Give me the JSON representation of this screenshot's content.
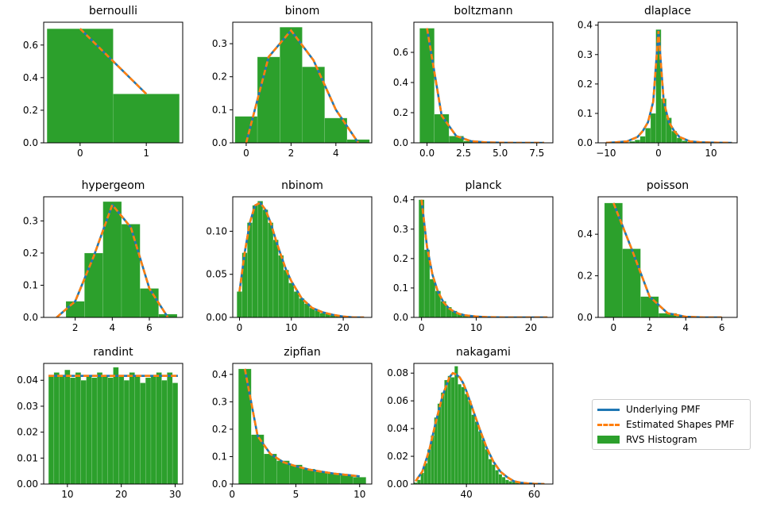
{
  "colors": {
    "pmf": "#1f77b4",
    "estimated": "#ff7f0e",
    "histogram": "#2ca02c",
    "axes": "#000000"
  },
  "legend": {
    "underlying_label": "Underlying PMF",
    "estimated_label": "Estimated Shapes PMF",
    "histogram_label": "RVS Histogram"
  },
  "chart_data": [
    {
      "title": "bernoulli",
      "type": "bar",
      "xlim": [
        -0.55,
        1.55
      ],
      "ylim": [
        0,
        0.74
      ],
      "xticks": [
        0,
        1
      ],
      "xticklabels": [
        "0",
        "1"
      ],
      "yticks": [
        0,
        0.2,
        0.4,
        0.6
      ],
      "yticklabels": [
        "0.0",
        "0.2",
        "0.4",
        "0.6"
      ],
      "hist_edges": [
        -0.5,
        0.5,
        1.5
      ],
      "hist_values": [
        0.7,
        0.3
      ],
      "pmf_x": [
        0,
        1
      ],
      "pmf_y": [
        0.7,
        0.3
      ]
    },
    {
      "title": "binom",
      "type": "bar",
      "xlim": [
        -0.6,
        5.6
      ],
      "ylim": [
        0,
        0.365
      ],
      "xticks": [
        0,
        2,
        4
      ],
      "xticklabels": [
        "0",
        "2",
        "4"
      ],
      "yticks": [
        0,
        0.1,
        0.2,
        0.3
      ],
      "yticklabels": [
        "0.0",
        "0.1",
        "0.2",
        "0.3"
      ],
      "hist_edges": [
        -0.5,
        0.5,
        1.5,
        2.5,
        3.5,
        4.5,
        5.5
      ],
      "hist_values": [
        0.08,
        0.26,
        0.35,
        0.23,
        0.075,
        0.01
      ],
      "pmf_x": [
        0,
        1,
        2,
        3,
        4,
        5
      ],
      "pmf_y": [
        0.0,
        0.26,
        0.34,
        0.25,
        0.1,
        0.0
      ]
    },
    {
      "title": "boltzmann",
      "type": "bar",
      "xlim": [
        -0.9,
        8.6
      ],
      "ylim": [
        0,
        0.8
      ],
      "xticks": [
        0,
        2.5,
        5,
        7.5
      ],
      "xticklabels": [
        "0.0",
        "2.5",
        "5.0",
        "7.5"
      ],
      "yticks": [
        0,
        0.2,
        0.4,
        0.6
      ],
      "yticklabels": [
        "0.0",
        "0.2",
        "0.4",
        "0.6"
      ],
      "hist_edges": [
        -0.5,
        0.5,
        1.5,
        2.5,
        3.5,
        4.5
      ],
      "hist_values": [
        0.76,
        0.19,
        0.045,
        0.012,
        0.003
      ],
      "pmf_x": [
        0,
        1,
        2,
        3,
        4,
        5,
        6,
        7,
        8
      ],
      "pmf_y": [
        0.76,
        0.18,
        0.045,
        0.011,
        0.003,
        0.001,
        0.0,
        0.0,
        0.0
      ]
    },
    {
      "title": "dlaplace",
      "type": "bar",
      "xlim": [
        -11.5,
        15
      ],
      "ylim": [
        0,
        0.41
      ],
      "xticks": [
        -10,
        0,
        10
      ],
      "xticklabels": [
        "−10",
        "0",
        "10"
      ],
      "yticks": [
        0,
        0.1,
        0.2,
        0.3,
        0.4
      ],
      "yticklabels": [
        "0.0",
        "0.1",
        "0.2",
        "0.3",
        "0.4"
      ],
      "hist_edges": [
        -6.5,
        -5.5,
        -4.5,
        -3.5,
        -2.5,
        -1.5,
        -0.5,
        0.5,
        1.5,
        2.5,
        3.5,
        4.5,
        5.5,
        6.5
      ],
      "hist_values": [
        0.002,
        0.005,
        0.01,
        0.022,
        0.05,
        0.1,
        0.385,
        0.15,
        0.085,
        0.04,
        0.017,
        0.007,
        0.003
      ],
      "pmf_x": [
        -10,
        -8,
        -6,
        -4,
        -3,
        -2,
        -1,
        0,
        1,
        2,
        3,
        4,
        6,
        8,
        10,
        14
      ],
      "pmf_y": [
        0.0,
        0.002,
        0.005,
        0.02,
        0.04,
        0.07,
        0.14,
        0.38,
        0.14,
        0.07,
        0.04,
        0.02,
        0.005,
        0.002,
        0.001,
        0.0
      ]
    },
    {
      "title": "hypergeom",
      "type": "bar",
      "xlim": [
        0.3,
        7.8
      ],
      "ylim": [
        0,
        0.375
      ],
      "xticks": [
        2,
        4,
        6
      ],
      "xticklabels": [
        "2",
        "4",
        "6"
      ],
      "yticks": [
        0,
        0.1,
        0.2,
        0.3
      ],
      "yticklabels": [
        "0.0",
        "0.1",
        "0.2",
        "0.3"
      ],
      "hist_edges": [
        1.5,
        2.5,
        3.5,
        4.5,
        5.5,
        6.5,
        7.5
      ],
      "hist_values": [
        0.05,
        0.2,
        0.36,
        0.29,
        0.09,
        0.01
      ],
      "pmf_x": [
        1,
        2,
        3,
        4,
        5,
        6,
        7
      ],
      "pmf_y": [
        0.0,
        0.05,
        0.19,
        0.35,
        0.28,
        0.09,
        0.0
      ]
    },
    {
      "title": "nbinom",
      "type": "bar",
      "xlim": [
        -1.3,
        25.5
      ],
      "ylim": [
        0,
        0.14
      ],
      "xticks": [
        0,
        10,
        20
      ],
      "xticklabels": [
        "0",
        "10",
        "20"
      ],
      "yticks": [
        0,
        0.05,
        0.1
      ],
      "yticklabels": [
        "0.00",
        "0.05",
        "0.10"
      ],
      "hist_edges": [
        -0.5,
        0.5,
        1.5,
        2.5,
        3.5,
        4.5,
        5.5,
        6.5,
        7.5,
        8.5,
        9.5,
        10.5,
        11.5,
        12.5,
        13.5,
        14.5,
        15.5,
        16.5,
        17.5,
        18.5,
        19.5,
        20.5
      ],
      "hist_values": [
        0.03,
        0.075,
        0.11,
        0.13,
        0.135,
        0.125,
        0.11,
        0.09,
        0.072,
        0.055,
        0.04,
        0.03,
        0.022,
        0.016,
        0.011,
        0.008,
        0.005,
        0.004,
        0.003,
        0.002,
        0.001
      ],
      "pmf_x": [
        0,
        1,
        2,
        3,
        4,
        5,
        6,
        7,
        8,
        9,
        10,
        12,
        14,
        16,
        18,
        20,
        22,
        24
      ],
      "pmf_y": [
        0.03,
        0.075,
        0.11,
        0.13,
        0.133,
        0.125,
        0.11,
        0.09,
        0.072,
        0.055,
        0.042,
        0.022,
        0.011,
        0.006,
        0.003,
        0.001,
        0.0,
        0.0
      ]
    },
    {
      "title": "planck",
      "type": "bar",
      "xlim": [
        -1.4,
        24
      ],
      "ylim": [
        0,
        0.41
      ],
      "xticks": [
        0,
        10,
        20
      ],
      "xticklabels": [
        "0",
        "10",
        "20"
      ],
      "yticks": [
        0,
        0.1,
        0.2,
        0.3,
        0.4
      ],
      "yticklabels": [
        "0.0",
        "0.1",
        "0.2",
        "0.3",
        "0.4"
      ],
      "hist_edges": [
        -0.5,
        0.5,
        1.5,
        2.5,
        3.5,
        4.5,
        5.5,
        6.5,
        7.5,
        8.5,
        9.5,
        10.5,
        11.5,
        12.5
      ],
      "hist_values": [
        0.4,
        0.23,
        0.13,
        0.09,
        0.055,
        0.035,
        0.022,
        0.014,
        0.009,
        0.006,
        0.004,
        0.002,
        0.001
      ],
      "pmf_x": [
        0,
        1,
        2,
        3,
        4,
        5,
        6,
        7,
        8,
        10,
        12,
        15,
        18,
        23
      ],
      "pmf_y": [
        0.4,
        0.24,
        0.145,
        0.087,
        0.052,
        0.031,
        0.019,
        0.011,
        0.007,
        0.003,
        0.001,
        0.0,
        0.0,
        0.0
      ]
    },
    {
      "title": "poisson",
      "type": "bar",
      "xlim": [
        -0.85,
        6.85
      ],
      "ylim": [
        0,
        0.58
      ],
      "xticks": [
        0,
        2,
        4,
        6
      ],
      "xticklabels": [
        "0",
        "2",
        "4",
        "6"
      ],
      "yticks": [
        0,
        0.2,
        0.4
      ],
      "yticklabels": [
        "0.0",
        "0.2",
        "0.4"
      ],
      "hist_edges": [
        -0.5,
        0.5,
        1.5,
        2.5,
        3.5,
        4.5,
        5.5
      ],
      "hist_values": [
        0.55,
        0.33,
        0.1,
        0.02,
        0.005,
        0.001
      ],
      "pmf_x": [
        0,
        1,
        2,
        3,
        4,
        5,
        6
      ],
      "pmf_y": [
        0.55,
        0.33,
        0.1,
        0.02,
        0.003,
        0.0,
        0.0
      ]
    },
    {
      "title": "randint",
      "type": "bar",
      "xlim": [
        5.6,
        31.4
      ],
      "ylim": [
        0,
        0.0465
      ],
      "xticks": [
        10,
        20,
        30
      ],
      "xticklabels": [
        "10",
        "20",
        "30"
      ],
      "yticks": [
        0,
        0.01,
        0.02,
        0.03,
        0.04
      ],
      "yticklabels": [
        "0.00",
        "0.01",
        "0.02",
        "0.03",
        "0.04"
      ],
      "hist_edges": [
        6.5,
        7.5,
        8.5,
        9.5,
        10.5,
        11.5,
        12.5,
        13.5,
        14.5,
        15.5,
        16.5,
        17.5,
        18.5,
        19.5,
        20.5,
        21.5,
        22.5,
        23.5,
        24.5,
        25.5,
        26.5,
        27.5,
        28.5,
        29.5,
        30.5
      ],
      "hist_values": [
        0.042,
        0.043,
        0.042,
        0.044,
        0.041,
        0.043,
        0.04,
        0.042,
        0.041,
        0.043,
        0.042,
        0.041,
        0.045,
        0.042,
        0.04,
        0.043,
        0.042,
        0.039,
        0.041,
        0.042,
        0.043,
        0.04,
        0.043,
        0.039
      ],
      "pmf_x": [
        6.5,
        30.5
      ],
      "pmf_y": [
        0.0417,
        0.0417
      ]
    },
    {
      "title": "zipfian",
      "type": "bar",
      "xlim": [
        0.05,
        10.95
      ],
      "ylim": [
        0,
        0.44
      ],
      "xticks": [
        0,
        5,
        10
      ],
      "xticklabels": [
        "0",
        "5",
        "10"
      ],
      "yticks": [
        0,
        0.1,
        0.2,
        0.3,
        0.4
      ],
      "yticklabels": [
        "0.0",
        "0.1",
        "0.2",
        "0.3",
        "0.4"
      ],
      "hist_edges": [
        0.5,
        1.5,
        2.5,
        3.5,
        4.5,
        5.5,
        6.5,
        7.5,
        8.5,
        9.5,
        10.5
      ],
      "hist_values": [
        0.42,
        0.18,
        0.11,
        0.085,
        0.07,
        0.055,
        0.045,
        0.04,
        0.035,
        0.025
      ],
      "pmf_x": [
        1,
        2,
        3,
        4,
        5,
        6,
        7,
        8,
        9,
        10
      ],
      "pmf_y": [
        0.42,
        0.175,
        0.11,
        0.08,
        0.065,
        0.053,
        0.045,
        0.038,
        0.033,
        0.028
      ]
    },
    {
      "title": "nakagami",
      "type": "bar",
      "xlim": [
        24.5,
        65.5
      ],
      "ylim": [
        0,
        0.087
      ],
      "xticks": [
        40,
        60
      ],
      "xticklabels": [
        "40",
        "60"
      ],
      "yticks": [
        0,
        0.02,
        0.04,
        0.06,
        0.08
      ],
      "yticklabels": [
        "0.00",
        "0.02",
        "0.04",
        "0.06",
        "0.08"
      ],
      "hist_edges": [
        24.5,
        25.5,
        26.5,
        27.5,
        28.5,
        29.5,
        30.5,
        31.5,
        32.5,
        33.5,
        34.5,
        35.5,
        36.5,
        37.5,
        38.5,
        39.5,
        40.5,
        41.5,
        42.5,
        43.5,
        44.5,
        45.5,
        46.5,
        47.5,
        48.5,
        49.5,
        50.5,
        51.5,
        52.5,
        53.5,
        54.5,
        55.5,
        56.5,
        57.5,
        58.5,
        59.5,
        60.5,
        61.5,
        62.5,
        63.5
      ],
      "hist_values": [
        0.001,
        0.003,
        0.008,
        0.015,
        0.025,
        0.035,
        0.048,
        0.058,
        0.066,
        0.075,
        0.078,
        0.077,
        0.085,
        0.072,
        0.07,
        0.065,
        0.06,
        0.05,
        0.045,
        0.038,
        0.032,
        0.025,
        0.018,
        0.014,
        0.01,
        0.007,
        0.005,
        0.003,
        0.002,
        0.0015,
        0.001,
        0.0008,
        0.0006,
        0.0005,
        0.0004,
        0.0003,
        0.0002,
        0.0002,
        0.0001
      ],
      "pmf_x": [
        25,
        27,
        29,
        31,
        33,
        35,
        36,
        37,
        38,
        39,
        40,
        42,
        44,
        46,
        48,
        50,
        52,
        54,
        56,
        58,
        60,
        63
      ],
      "pmf_y": [
        0.002,
        0.009,
        0.024,
        0.045,
        0.064,
        0.077,
        0.08,
        0.079,
        0.077,
        0.073,
        0.067,
        0.053,
        0.039,
        0.026,
        0.016,
        0.009,
        0.005,
        0.002,
        0.001,
        0.0005,
        0.0002,
        0.0
      ]
    }
  ]
}
